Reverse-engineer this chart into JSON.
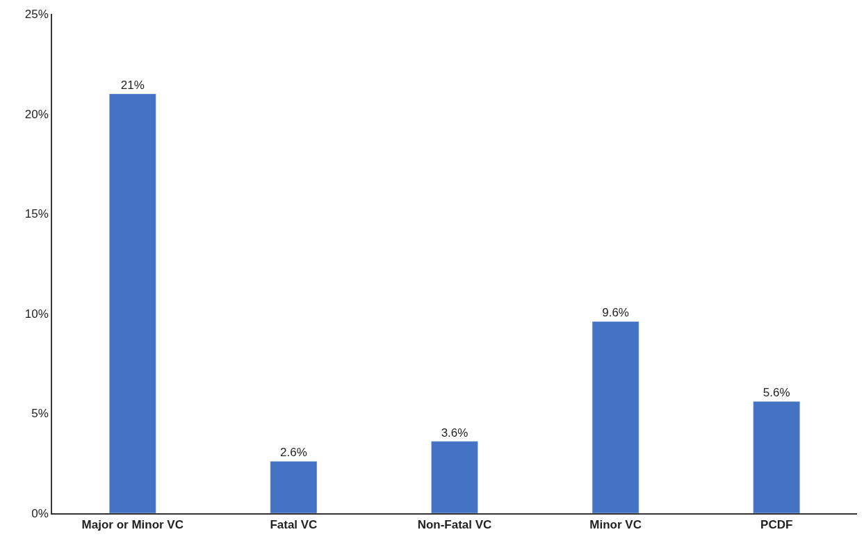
{
  "chart_data": {
    "type": "bar",
    "categories": [
      "Major or Minor VC",
      "Fatal VC",
      "Non-Fatal VC",
      "Minor VC",
      "PCDF"
    ],
    "values": [
      21,
      2.6,
      3.6,
      9.6,
      5.6
    ],
    "value_labels": [
      "21%",
      "2.6%",
      "3.6%",
      "9.6%",
      "5.6%"
    ],
    "color": "#4472c4",
    "ylim": [
      0,
      25
    ],
    "yticks": [
      {
        "value": 0,
        "label": "0%"
      },
      {
        "value": 5,
        "label": "5%"
      },
      {
        "value": 10,
        "label": "10%"
      },
      {
        "value": 15,
        "label": "15%"
      },
      {
        "value": 20,
        "label": "20%"
      },
      {
        "value": 25,
        "label": "25%"
      }
    ]
  }
}
